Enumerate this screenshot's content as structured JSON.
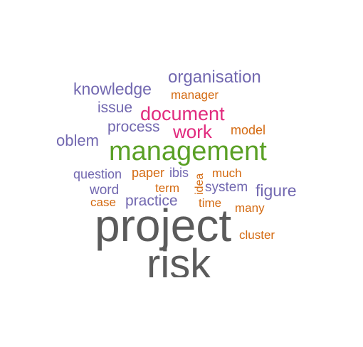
{
  "cloud": {
    "organisation": "organisation",
    "knowledge": "knowledge",
    "manager": "manager",
    "issue": "issue",
    "document": "document",
    "process": "process",
    "work": "work",
    "model": "model",
    "oblem": "oblem",
    "management": "management",
    "question": "question",
    "paper": "paper",
    "ibis": "ibis",
    "idea": "idea",
    "much": "much",
    "word": "word",
    "term": "term",
    "system": "system",
    "figure": "figure",
    "case": "case",
    "practice": "practice",
    "time": "time",
    "many": "many",
    "project": "project",
    "cluster": "cluster",
    "risk": "risk"
  },
  "colors": {
    "purple": "#7268b0",
    "orange": "#d46a11",
    "pink": "#e12b7e",
    "green": "#5aa025",
    "gray": "#5b5b5b"
  }
}
